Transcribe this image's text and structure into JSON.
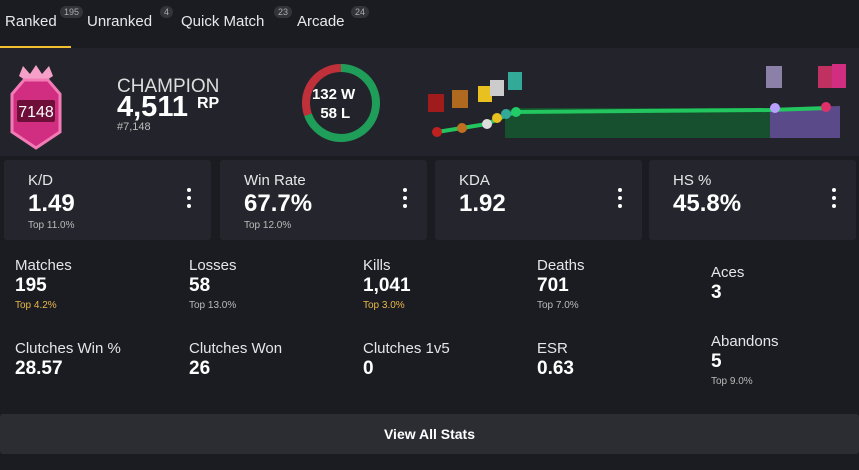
{
  "tabs": [
    {
      "label": "Ranked",
      "count": "195"
    },
    {
      "label": "Unranked",
      "count": "4"
    },
    {
      "label": "Quick Match",
      "count": "23"
    },
    {
      "label": "Arcade",
      "count": "24"
    }
  ],
  "rank": {
    "badge": "7148",
    "name": "CHAMPION",
    "rp": "4,511",
    "rp_unit": "RP",
    "position": "#7,148"
  },
  "record": {
    "wins": 132,
    "wins_label": "W",
    "losses": 58,
    "losses_label": "L"
  },
  "cards": [
    {
      "label": "K/D",
      "value": "1.49",
      "top": "Top 11.0%"
    },
    {
      "label": "Win Rate",
      "value": "67.7%",
      "top": "Top 12.0%"
    },
    {
      "label": "KDA",
      "value": "1.92"
    },
    {
      "label": "HS %",
      "value": "45.8%"
    }
  ],
  "stats": [
    {
      "label": "Matches",
      "value": "195",
      "top": "Top 4.2%",
      "highlight": true
    },
    {
      "label": "Losses",
      "value": "58",
      "top": "Top 13.0%"
    },
    {
      "label": "Kills",
      "value": "1,041",
      "top": "Top 3.0%",
      "highlight": true
    },
    {
      "label": "Deaths",
      "value": "701",
      "top": "Top 7.0%"
    },
    {
      "label": "Aces",
      "value": "3"
    },
    {
      "label": "Clutches Win %",
      "value": "28.57"
    },
    {
      "label": "Clutches Won",
      "value": "26"
    },
    {
      "label": "Clutches 1v5",
      "value": "0"
    },
    {
      "label": "ESR",
      "value": "0.63"
    },
    {
      "label": "Abandons",
      "value": "5",
      "top": "Top 9.0%"
    }
  ],
  "button": "View All Stats"
}
